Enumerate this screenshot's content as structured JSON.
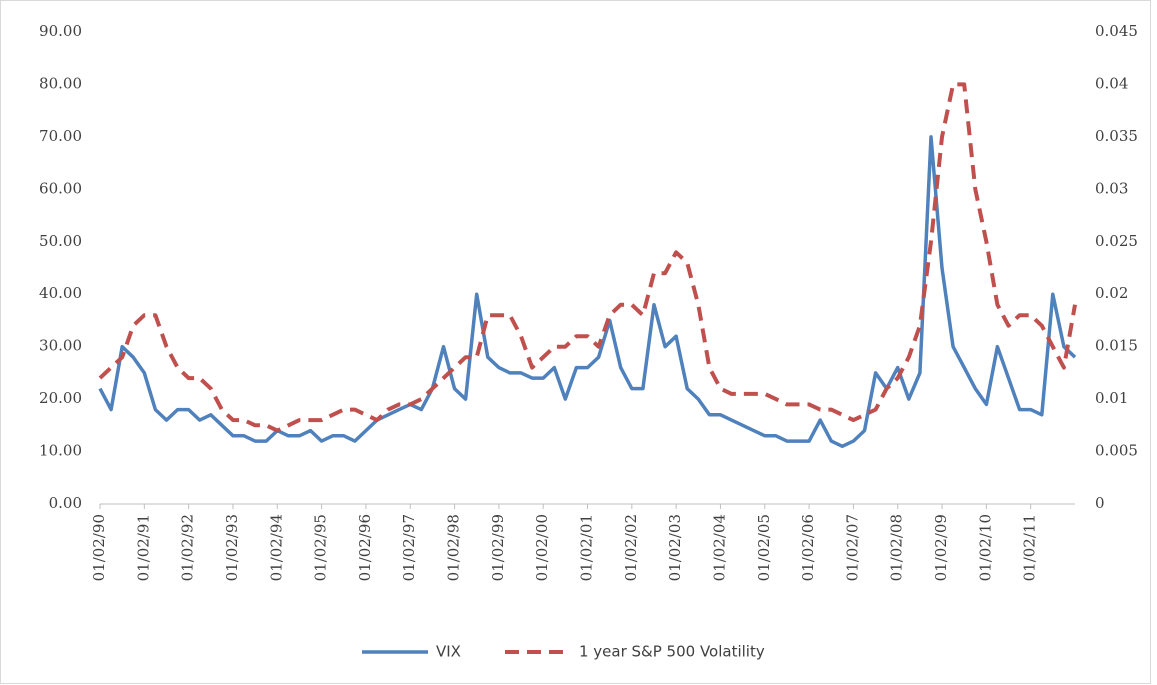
{
  "chart_data": {
    "type": "line",
    "categories": [
      "01/02/90",
      null,
      null,
      null,
      "01/02/91",
      null,
      null,
      null,
      "01/02/92",
      null,
      null,
      null,
      "01/02/93",
      null,
      null,
      null,
      "01/02/94",
      null,
      null,
      null,
      "01/02/95",
      null,
      null,
      null,
      "01/02/96",
      null,
      null,
      null,
      "01/02/97",
      null,
      null,
      null,
      "01/02/98",
      null,
      null,
      null,
      "01/02/99",
      null,
      null,
      null,
      "01/02/00",
      null,
      null,
      null,
      "01/02/01",
      null,
      null,
      null,
      "01/02/02",
      null,
      null,
      null,
      "01/02/03",
      null,
      null,
      null,
      "01/02/04",
      null,
      null,
      null,
      "01/02/05",
      null,
      null,
      null,
      "01/02/06",
      null,
      null,
      null,
      "01/02/07",
      null,
      null,
      null,
      "01/02/08",
      null,
      null,
      null,
      "01/02/09",
      null,
      null,
      null,
      "01/02/10",
      null,
      null,
      null,
      "01/02/11",
      null,
      null,
      null,
      null
    ],
    "series": [
      {
        "name": "VIX",
        "color": "#4f81bd",
        "style": "solid",
        "axis": "y",
        "values": [
          22,
          18,
          30,
          28,
          25,
          18,
          16,
          18,
          18,
          16,
          17,
          15,
          13,
          13,
          12,
          12,
          14,
          13,
          13,
          14,
          12,
          13,
          13,
          12,
          14,
          16,
          17,
          18,
          19,
          18,
          22,
          30,
          22,
          20,
          40,
          28,
          26,
          25,
          25,
          24,
          24,
          26,
          20,
          26,
          26,
          28,
          35,
          26,
          22,
          22,
          38,
          30,
          32,
          22,
          20,
          17,
          17,
          16,
          15,
          14,
          13,
          13,
          12,
          12,
          12,
          16,
          12,
          11,
          12,
          14,
          25,
          22,
          26,
          20,
          25,
          70,
          45,
          30,
          26,
          22,
          19,
          30,
          24,
          18,
          18,
          17,
          40,
          30,
          28
        ]
      },
      {
        "name": "1 year S&P 500 Volatility",
        "color": "#c0504d",
        "style": "dashed",
        "axis": "y2",
        "values": [
          0.012,
          0.013,
          0.014,
          0.017,
          0.018,
          0.018,
          0.015,
          0.013,
          0.012,
          0.012,
          0.011,
          0.009,
          0.008,
          0.008,
          0.0075,
          0.0075,
          0.007,
          0.0075,
          0.008,
          0.008,
          0.008,
          0.0085,
          0.009,
          0.009,
          0.0085,
          0.008,
          0.009,
          0.0095,
          0.0095,
          0.01,
          0.011,
          0.012,
          0.013,
          0.014,
          0.014,
          0.018,
          0.018,
          0.018,
          0.016,
          0.013,
          0.014,
          0.015,
          0.015,
          0.016,
          0.016,
          0.015,
          0.018,
          0.019,
          0.019,
          0.018,
          0.022,
          0.022,
          0.024,
          0.023,
          0.019,
          0.013,
          0.011,
          0.0105,
          0.0105,
          0.0105,
          0.0105,
          0.01,
          0.0095,
          0.0095,
          0.0095,
          0.009,
          0.009,
          0.0085,
          0.008,
          0.0085,
          0.009,
          0.011,
          0.012,
          0.014,
          0.017,
          0.025,
          0.035,
          0.04,
          0.04,
          0.03,
          0.025,
          0.019,
          0.017,
          0.018,
          0.018,
          0.017,
          0.015,
          0.013,
          0.019
        ]
      }
    ],
    "ylim": [
      0,
      90
    ],
    "yticks": [
      {
        "value": 0,
        "label": "0.00"
      },
      {
        "value": 10,
        "label": "10.00"
      },
      {
        "value": 20,
        "label": "20.00"
      },
      {
        "value": 30,
        "label": "30.00"
      },
      {
        "value": 40,
        "label": "40.00"
      },
      {
        "value": 50,
        "label": "50.00"
      },
      {
        "value": 60,
        "label": "60.00"
      },
      {
        "value": 70,
        "label": "70.00"
      },
      {
        "value": 80,
        "label": "80.00"
      },
      {
        "value": 90,
        "label": "90.00"
      }
    ],
    "y2lim": [
      0,
      0.045
    ],
    "y2ticks": [
      0,
      0.005,
      0.01,
      0.015,
      0.02,
      0.025,
      0.03,
      0.035,
      0.04,
      0.045
    ],
    "grid": false,
    "legend": "bottom"
  }
}
